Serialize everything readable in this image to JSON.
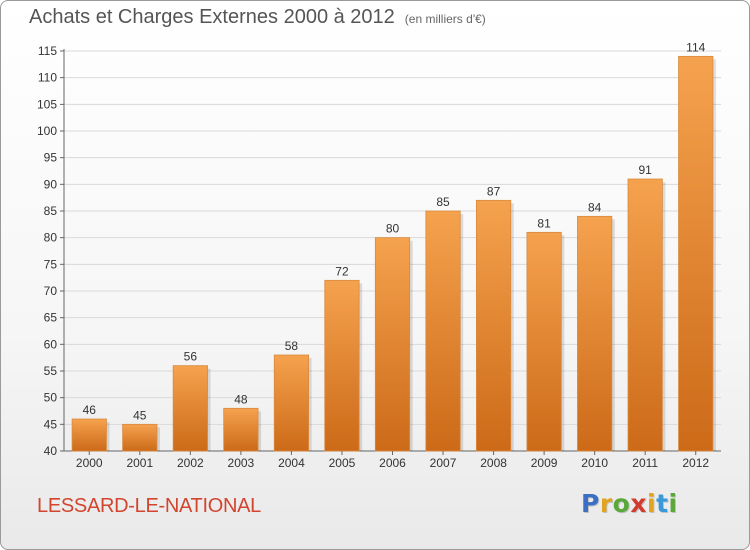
{
  "header": {
    "title": "Achats et Charges Externes 2000 à 2012",
    "subtitle": "(en milliers d'€)"
  },
  "footer": {
    "commune": "LESSARD-LE-NATIONAL",
    "logo_letters": [
      "P",
      "r",
      "o",
      "x",
      "i",
      "t",
      "i"
    ],
    "logo_colors": [
      "#3a6fc4",
      "#e2a41e",
      "#5aa83a",
      "#d23c2e",
      "#e2a41e",
      "#3a9ad9",
      "#5aa83a"
    ]
  },
  "colors": {
    "bar_top": "#f5a24e",
    "bar_bottom": "#cc6a18",
    "grid": "#d9d9d9",
    "axis": "#666666",
    "tick_text": "#333333"
  },
  "chart_data": {
    "type": "bar",
    "categories": [
      "2000",
      "2001",
      "2002",
      "2003",
      "2004",
      "2005",
      "2006",
      "2007",
      "2008",
      "2009",
      "2010",
      "2011",
      "2012"
    ],
    "values": [
      46,
      45,
      56,
      48,
      58,
      72,
      80,
      85,
      87,
      81,
      84,
      91,
      114
    ],
    "ylim": [
      40,
      115
    ],
    "yticks": [
      40,
      45,
      50,
      55,
      60,
      65,
      70,
      75,
      80,
      85,
      90,
      95,
      100,
      105,
      110,
      115
    ],
    "grid": true,
    "data_labels": true
  }
}
